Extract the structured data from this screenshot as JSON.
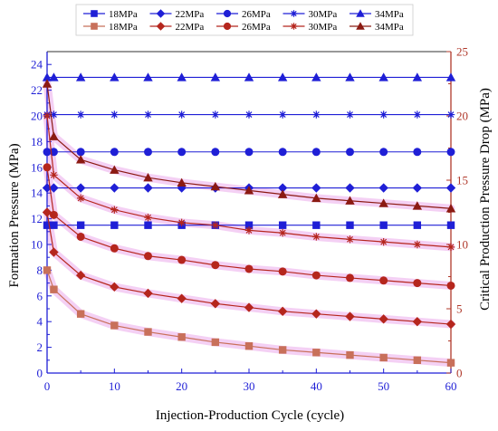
{
  "chart_data": {
    "type": "line",
    "title": "",
    "xlabel": "Injection-Production Cycle (cycle)",
    "ylabel_left": "Formation Pressure (MPa)",
    "ylabel_right": "Critical Production Pressure Drop (MPa)",
    "xlim": [
      0,
      60
    ],
    "ylim_left": [
      0,
      25
    ],
    "ylim_right": [
      0,
      25
    ],
    "x_ticks": [
      0,
      10,
      20,
      30,
      40,
      50,
      60
    ],
    "y_left_ticks": [
      0,
      2,
      4,
      6,
      8,
      10,
      12,
      14,
      16,
      18,
      20,
      22,
      24
    ],
    "y_right_ticks": [
      0,
      5,
      10,
      15,
      20,
      25
    ],
    "grid": false,
    "legend_position": "top",
    "x": [
      0,
      1,
      5,
      10,
      15,
      20,
      25,
      30,
      35,
      40,
      45,
      50,
      55,
      60
    ],
    "formation_pressure_series": [
      {
        "name": "18MPa",
        "marker": "square",
        "color": "#1f1fd6",
        "axis": "left",
        "values": [
          11.5,
          11.5,
          11.5,
          11.5,
          11.5,
          11.5,
          11.5,
          11.5,
          11.5,
          11.5,
          11.5,
          11.5,
          11.5,
          11.5
        ]
      },
      {
        "name": "22MPa",
        "marker": "diamond",
        "color": "#1f1fd6",
        "axis": "left",
        "values": [
          14.4,
          14.4,
          14.4,
          14.4,
          14.4,
          14.4,
          14.4,
          14.4,
          14.4,
          14.4,
          14.4,
          14.4,
          14.4,
          14.4
        ]
      },
      {
        "name": "26MPa",
        "marker": "circle",
        "color": "#1f1fd6",
        "axis": "left",
        "values": [
          17.2,
          17.2,
          17.2,
          17.2,
          17.2,
          17.2,
          17.2,
          17.2,
          17.2,
          17.2,
          17.2,
          17.2,
          17.2,
          17.2
        ]
      },
      {
        "name": "30MPa",
        "marker": "star",
        "color": "#1f1fd6",
        "axis": "left",
        "values": [
          20.1,
          20.1,
          20.1,
          20.1,
          20.1,
          20.1,
          20.1,
          20.1,
          20.1,
          20.1,
          20.1,
          20.1,
          20.1,
          20.1
        ]
      },
      {
        "name": "34MPa",
        "marker": "triangle",
        "color": "#1f1fd6",
        "axis": "left",
        "values": [
          23.0,
          23.0,
          23.0,
          23.0,
          23.0,
          23.0,
          23.0,
          23.0,
          23.0,
          23.0,
          23.0,
          23.0,
          23.0,
          23.0
        ]
      }
    ],
    "pressure_drop_series": [
      {
        "name": "18MPa",
        "marker": "square",
        "color": "#c8705a",
        "axis": "right",
        "values": [
          8.0,
          6.5,
          4.6,
          3.7,
          3.2,
          2.8,
          2.4,
          2.1,
          1.8,
          1.6,
          1.4,
          1.2,
          1.0,
          0.8
        ]
      },
      {
        "name": "22MPa",
        "marker": "diamond",
        "color": "#b5261d",
        "axis": "right",
        "values": [
          12.5,
          9.4,
          7.6,
          6.7,
          6.2,
          5.8,
          5.4,
          5.1,
          4.8,
          4.6,
          4.4,
          4.2,
          4.0,
          3.8
        ]
      },
      {
        "name": "26MPa",
        "marker": "circle",
        "color": "#b5261d",
        "axis": "right",
        "values": [
          16.0,
          12.3,
          10.6,
          9.7,
          9.1,
          8.8,
          8.4,
          8.1,
          7.9,
          7.6,
          7.4,
          7.2,
          7.0,
          6.8
        ]
      },
      {
        "name": "30MPa",
        "marker": "star",
        "color": "#b5261d",
        "axis": "right",
        "values": [
          20.0,
          15.4,
          13.6,
          12.7,
          12.1,
          11.7,
          11.5,
          11.1,
          10.9,
          10.6,
          10.4,
          10.2,
          10.0,
          9.8
        ]
      },
      {
        "name": "34MPa",
        "marker": "triangle",
        "color": "#8b1a12",
        "axis": "right",
        "values": [
          22.5,
          18.4,
          16.6,
          15.8,
          15.2,
          14.8,
          14.5,
          14.2,
          13.9,
          13.6,
          13.4,
          13.2,
          13.0,
          12.8
        ]
      }
    ],
    "colors": {
      "left_axis": "#1f1fd6",
      "right_axis": "#b0392b",
      "highlight": "#f2c8f2"
    }
  }
}
